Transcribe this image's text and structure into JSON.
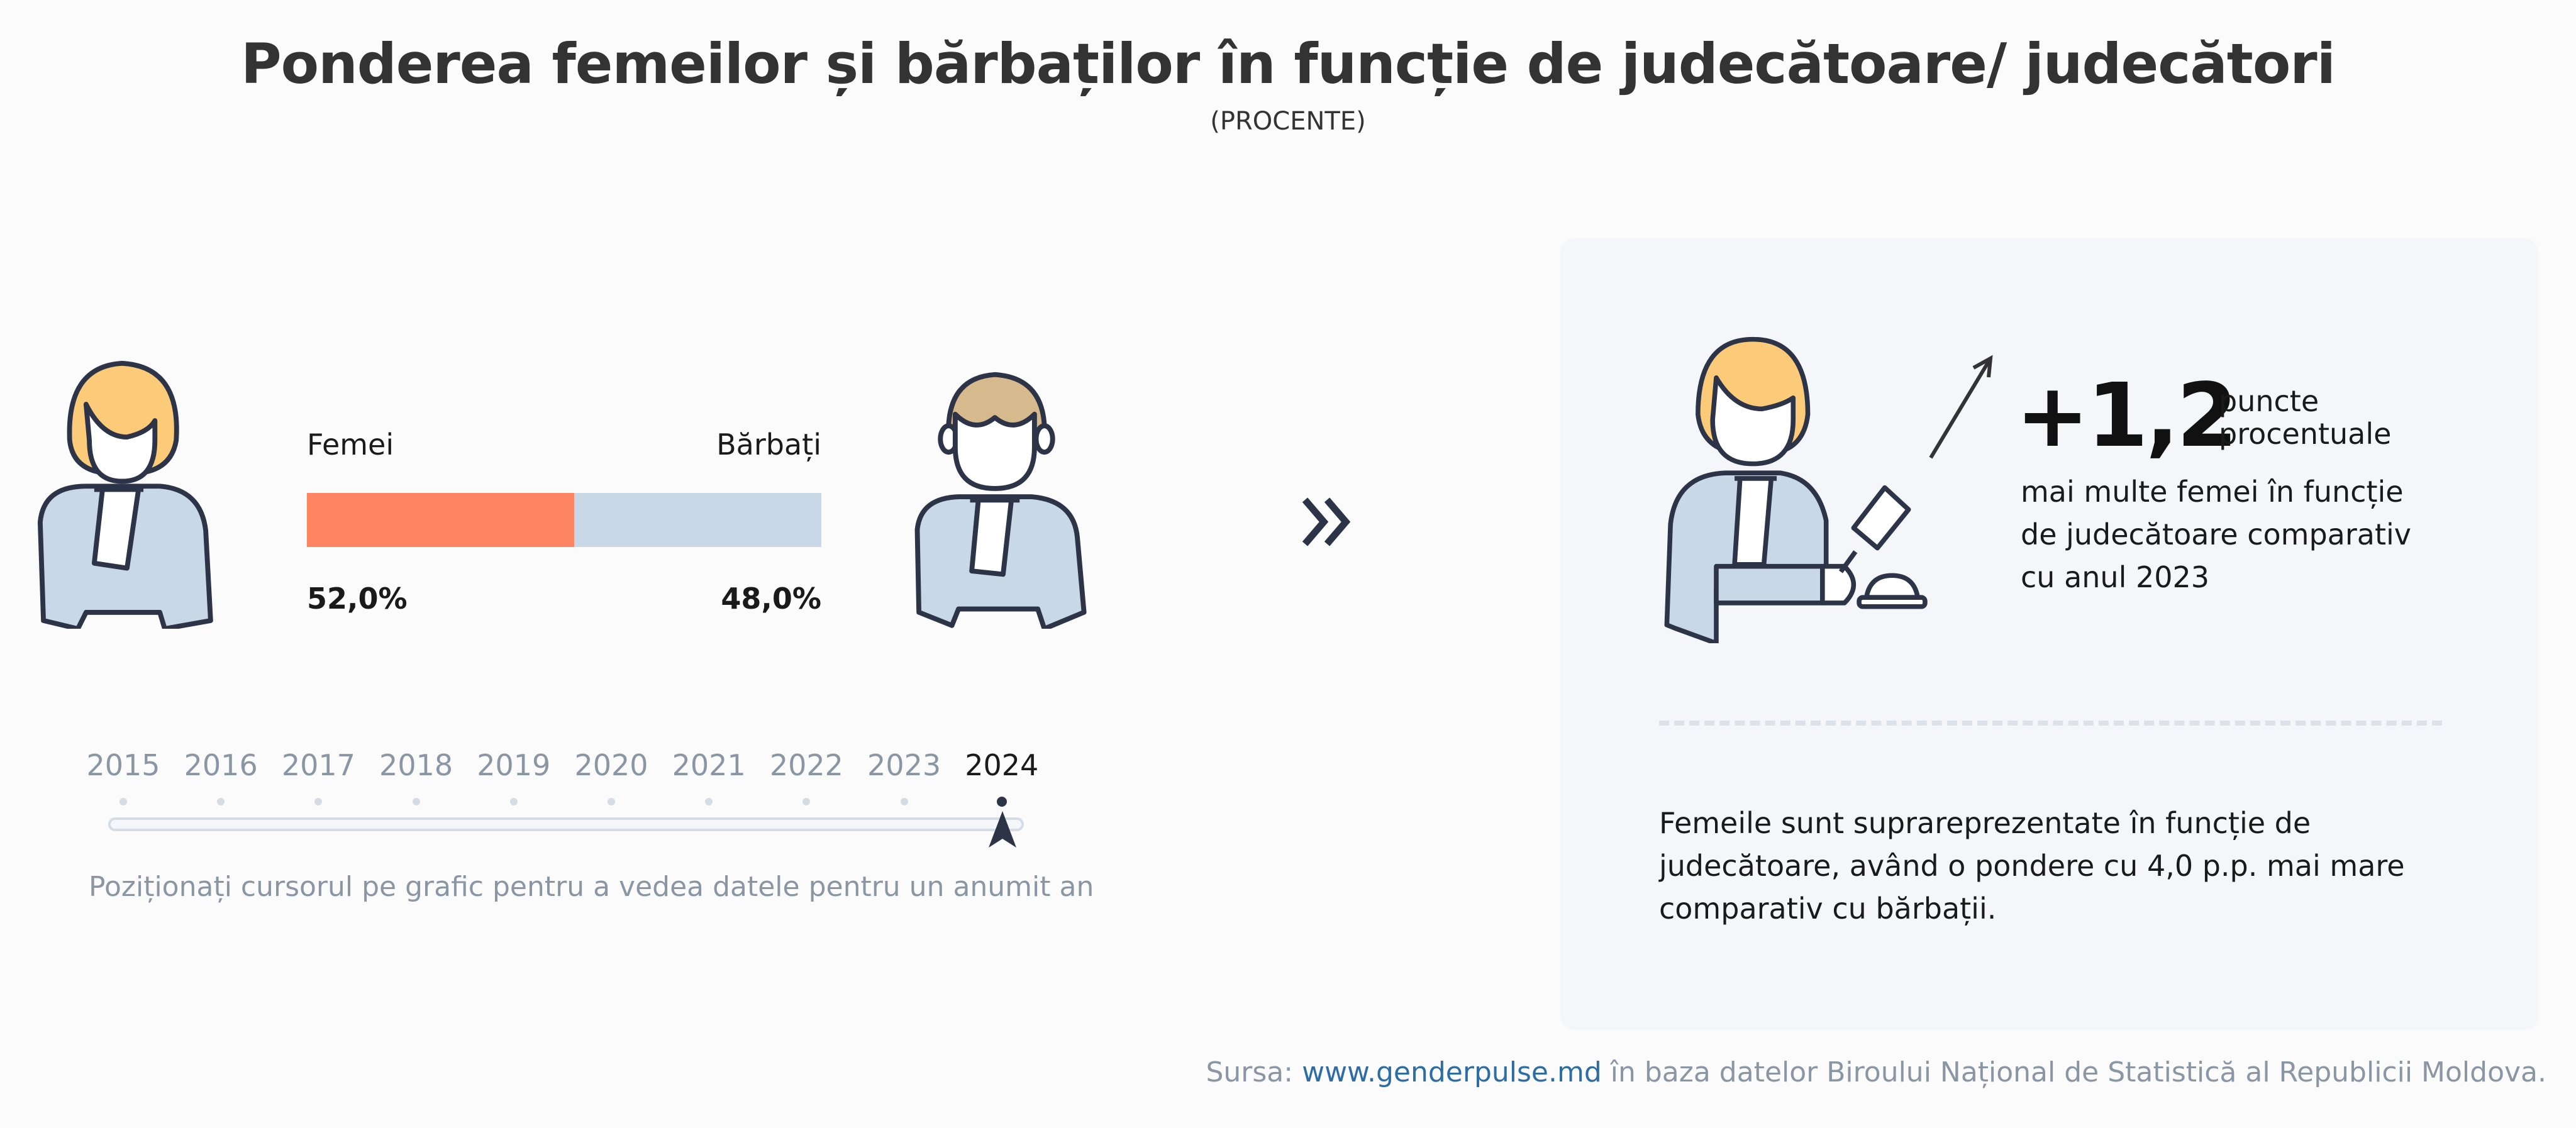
{
  "title": "Ponderea femeilor și bărbaților în funcție de judecătoare/ judecători",
  "subtitle": "(PROCENTE)",
  "chart_data": {
    "type": "bar",
    "orientation": "horizontal-stacked",
    "selected_year": "2024",
    "series": [
      {
        "name": "Femei",
        "value": 52.0,
        "label": "52,0%",
        "color": "#FF8562"
      },
      {
        "name": "Bărbați",
        "value": 48.0,
        "label": "48,0%",
        "color": "#C9D8E6"
      }
    ],
    "xlim": [
      0,
      100
    ]
  },
  "timeline": {
    "years": [
      "2015",
      "2016",
      "2017",
      "2018",
      "2019",
      "2020",
      "2021",
      "2022",
      "2023",
      "2024"
    ],
    "selected": "2024",
    "hint": "Poziționați cursorul pe grafic pentru a vedea datele pentru un anumit an"
  },
  "card": {
    "change_value": "+1,2",
    "change_unit_line1": "puncte",
    "change_unit_line2": "procentuale",
    "change_desc": [
      "mai multe femei în funcție",
      "de judecătoare comparativ",
      "cu anul 2023"
    ],
    "summary": [
      "Femeile sunt suprareprezentate în funcție de",
      "judecătoare, având o pondere cu 4,0 p.p. mai mare",
      "comparativ cu bărbații."
    ]
  },
  "source": {
    "prefix": "Sursa: ",
    "link": "www.genderpulse.md",
    "suffix": " în baza datelor Biroului Național de Statistică al Republicii Moldova."
  },
  "icons": {
    "woman": "female-judge-icon",
    "man": "male-judge-icon",
    "next": "double-chevron-right-icon",
    "trend": "arrow-up-right-icon",
    "gavel": "gavel-icon"
  }
}
